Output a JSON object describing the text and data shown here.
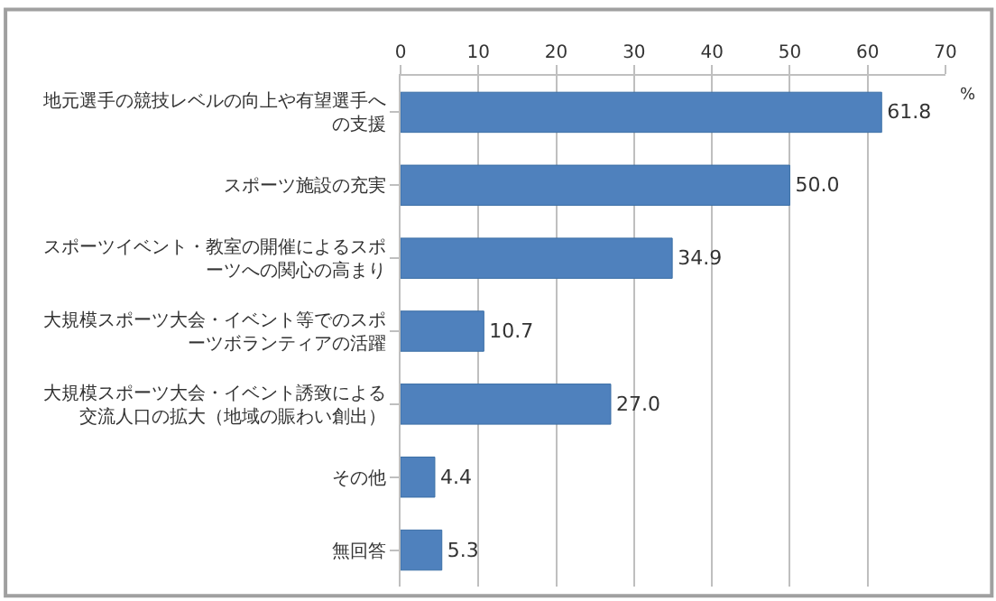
{
  "chart_data": {
    "type": "bar",
    "orientation": "horizontal",
    "xlabel": "%",
    "categories": [
      "地元選手の競技レベルの向上や有望選手への支援",
      "スポーツ施設の充実",
      "スポーツイベント・教室の開催によるスポーツへの関心の高まり",
      "大規模スポーツ大会・イベント等でのスポーツボランティアの活躍",
      "大規模スポーツ大会・イベント誘致による交流人口の拡大（地域の賑わい創出）",
      "その他",
      "無回答"
    ],
    "values": [
      61.8,
      50.0,
      34.9,
      10.7,
      27.0,
      4.4,
      5.3
    ],
    "value_labels": [
      "61.8",
      "50.0",
      "34.9",
      "10.7",
      "27.0",
      "4.4",
      "5.3"
    ],
    "color": "#4f81bd",
    "xlim": [
      0,
      70
    ],
    "xticks": [
      0,
      10,
      20,
      30,
      40,
      50,
      60,
      70
    ],
    "grid": "x",
    "legend": false
  }
}
